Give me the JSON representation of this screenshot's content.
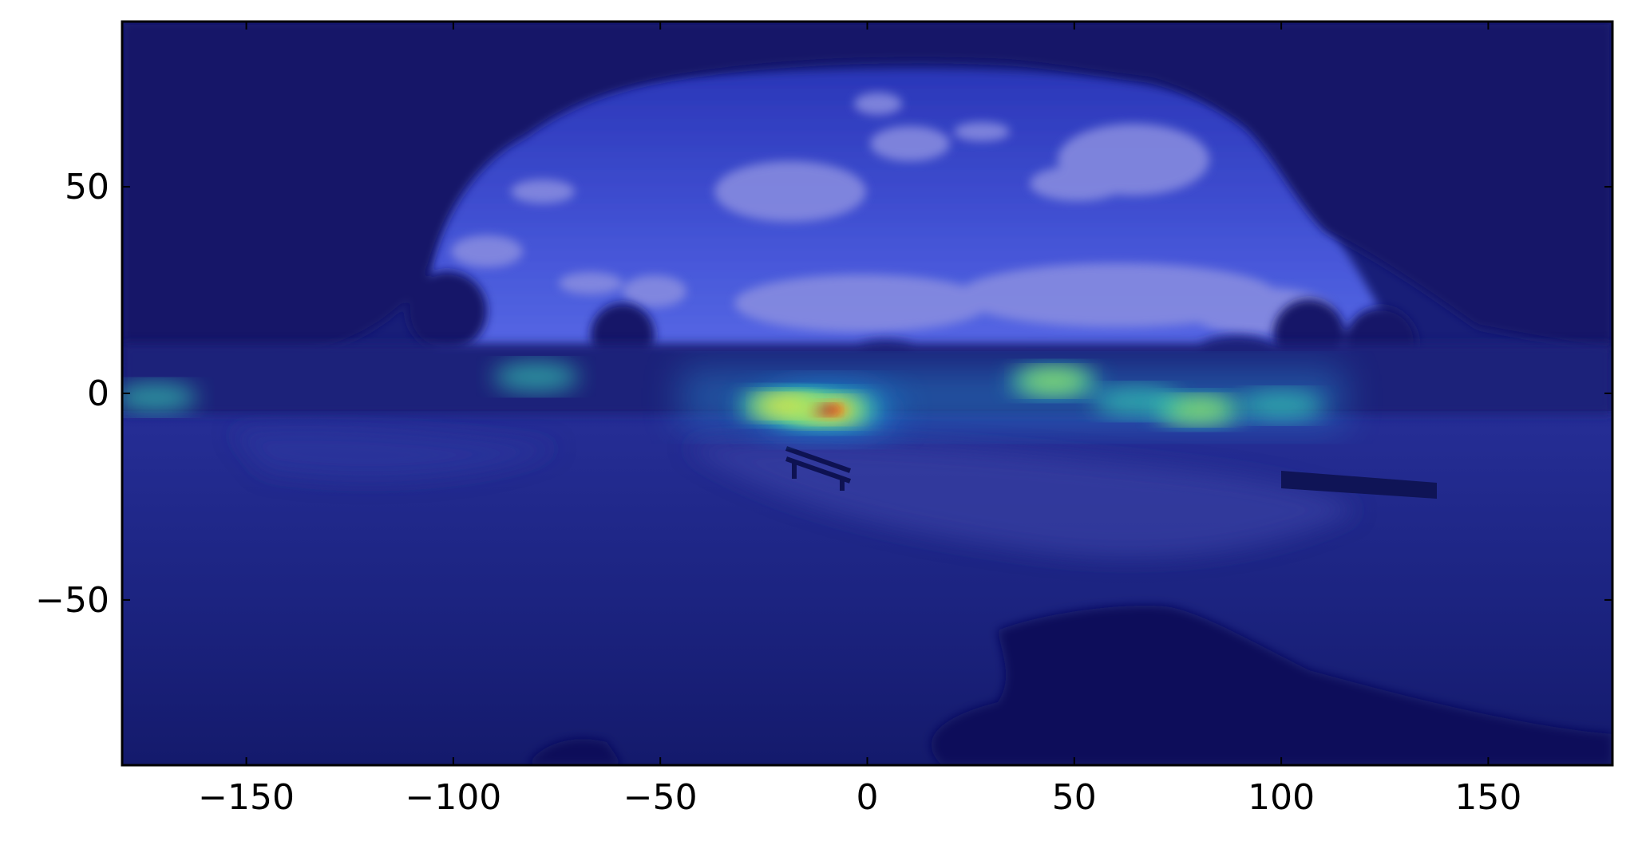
{
  "chart_data": {
    "type": "heatmap",
    "title": "",
    "xlabel": "",
    "ylabel": "",
    "xlim": [
      -180,
      180
    ],
    "ylim": [
      -90,
      90
    ],
    "xticks": [
      -150,
      -100,
      -50,
      0,
      50,
      100,
      150
    ],
    "yticks": [
      -50,
      0,
      50
    ],
    "xtick_labels": [
      "−150",
      "−100",
      "−50",
      "0",
      "50",
      "100",
      "150"
    ],
    "ytick_labels": [
      "−50",
      "0",
      "50"
    ],
    "colormap": "jet",
    "background": "equirectangular 360° park panorama (tree canopy, sky with clouds, bench, pond)",
    "hotspots": [
      {
        "x": -10,
        "y": -4,
        "intensity": 1.0
      },
      {
        "x": -20,
        "y": -3,
        "intensity": 0.72
      },
      {
        "x": 45,
        "y": 3,
        "intensity": 0.62
      },
      {
        "x": 80,
        "y": -4,
        "intensity": 0.6
      },
      {
        "x": 65,
        "y": -2,
        "intensity": 0.5
      },
      {
        "x": 100,
        "y": -3,
        "intensity": 0.45
      },
      {
        "x": -80,
        "y": 4,
        "intensity": 0.5
      },
      {
        "x": -172,
        "y": -1,
        "intensity": 0.45
      }
    ],
    "colors": {
      "sky": "#3f50d8",
      "canopy": "#14186a",
      "ground": "#1c2488",
      "frame": "#000000"
    }
  }
}
